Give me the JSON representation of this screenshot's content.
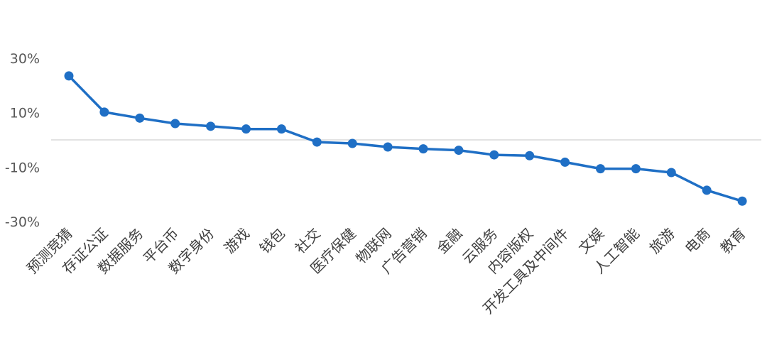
{
  "chart_data": {
    "type": "line",
    "title": "",
    "xlabel": "",
    "ylabel": "",
    "ylim": [
      -30,
      30
    ],
    "y_ticks": [
      "30%",
      "10%",
      "-10%",
      "-30%"
    ],
    "y_tick_values": [
      30,
      10,
      -10,
      -30
    ],
    "zero_line": true,
    "grid": false,
    "legend": "none",
    "colors": {
      "line": "#1F6FC5",
      "marker": "#1F6FC5",
      "zero_line": "#D9D9D9",
      "tick_text": "#595959",
      "category_text": "#404040"
    },
    "categories": [
      "预测竞猜",
      "存证公证",
      "数据服务",
      "平台币",
      "数字身份",
      "游戏",
      "钱包",
      "社交",
      "医疗保健",
      "物联网",
      "广告营销",
      "金融",
      "云服务",
      "内容版权",
      "开发工具及中间件",
      "文娱",
      "人工智能",
      "旅游",
      "电商",
      "教育"
    ],
    "series": [
      {
        "values": [
          23.5,
          10.2,
          8.0,
          6.0,
          5.0,
          4.0,
          4.0,
          -0.8,
          -1.3,
          -2.6,
          -3.3,
          -3.8,
          -5.5,
          -5.8,
          -8.2,
          -10.6,
          -10.6,
          -12.0,
          -18.5,
          -22.5
        ]
      }
    ]
  }
}
